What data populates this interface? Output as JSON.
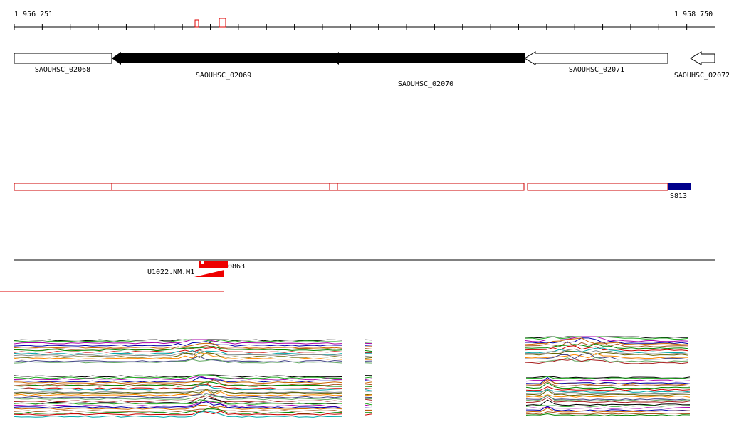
{
  "ruler": {
    "start_label": "1 956 251",
    "end_label": "1 958 750"
  },
  "genes": [
    {
      "label": "SAOUHSC_02068"
    },
    {
      "label": "SAOUHSC_02069"
    },
    {
      "label": "SAOUHSC_02070"
    },
    {
      "label": "SAOUHSC_02071"
    },
    {
      "label": "SAOUHSC_02072"
    }
  ],
  "segments": {
    "label": "S813"
  },
  "features": {
    "label": "0863",
    "name": "U1022.NM.M1"
  }
}
